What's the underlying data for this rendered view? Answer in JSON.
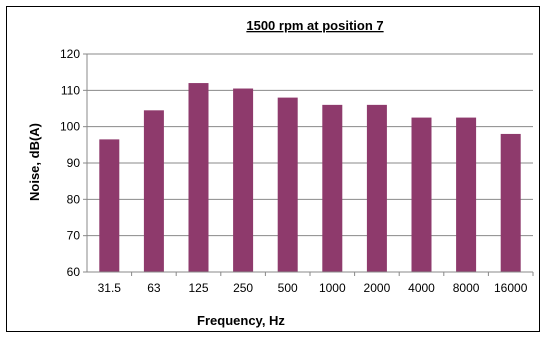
{
  "chart_data": {
    "type": "bar",
    "title": "1500 rpm at position 7",
    "xlabel": "Frequency, Hz",
    "ylabel": "Noise, dB(A)",
    "categories": [
      "31.5",
      "63",
      "125",
      "250",
      "500",
      "1000",
      "2000",
      "4000",
      "8000",
      "16000"
    ],
    "values": [
      96.5,
      104.5,
      112,
      110.5,
      108,
      106,
      106,
      102.5,
      102.5,
      98
    ],
    "ylim": [
      60,
      120
    ],
    "yticks": [
      "60",
      "70",
      "80",
      "90",
      "100",
      "110",
      "120"
    ],
    "grid": true,
    "legend": "none",
    "colors": {
      "bar": "#8e3a6c",
      "grid": "#8a8a8a",
      "plot_bg": "#ffffff"
    }
  }
}
